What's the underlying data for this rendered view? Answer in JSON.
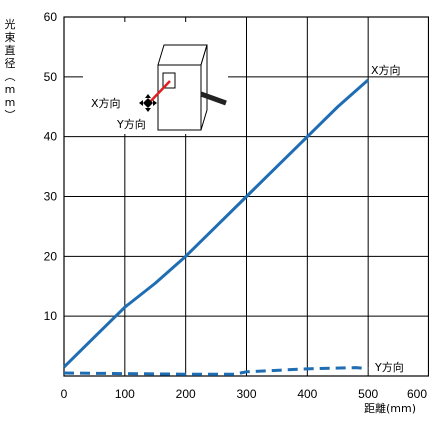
{
  "chart_data": {
    "type": "line",
    "xlabel": "距離(mm)",
    "ylabel": "光束直径（mm）",
    "xlim": [
      0,
      600
    ],
    "ylim": [
      0,
      60
    ],
    "x_ticks": [
      "0",
      "100",
      "200",
      "300",
      "400",
      "500",
      "600"
    ],
    "y_ticks": [
      "10",
      "20",
      "30",
      "40",
      "50",
      "60"
    ],
    "grid": true,
    "series": [
      {
        "name": "X方向",
        "style": "solid",
        "color": "#1f6db3",
        "x": [
          0,
          50,
          100,
          150,
          200,
          250,
          300,
          350,
          400,
          450,
          500
        ],
        "y": [
          1.5,
          6.5,
          11.5,
          15.5,
          20,
          25,
          30,
          35,
          40,
          45,
          49.5
        ]
      },
      {
        "name": "Y方向",
        "style": "dashed",
        "color": "#1f6db3",
        "x": [
          0,
          100,
          200,
          280,
          300,
          400,
          480,
          500
        ],
        "y": [
          0.5,
          0.4,
          0.3,
          0.3,
          0.7,
          1.2,
          1.4,
          1.2
        ]
      }
    ],
    "annotations": {
      "inset_x_label": "X方向",
      "inset_y_label": "Y方向"
    }
  }
}
